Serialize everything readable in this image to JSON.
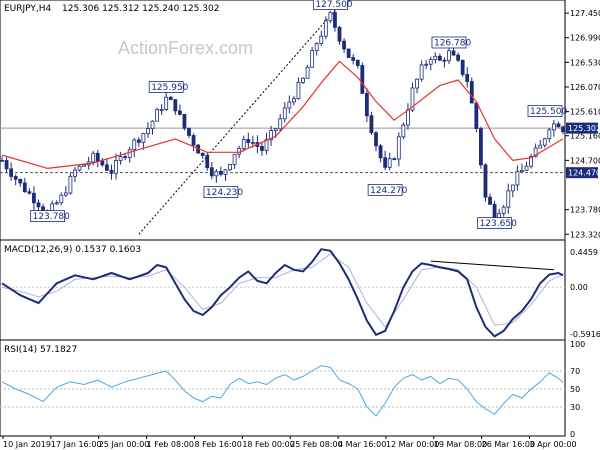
{
  "header": {
    "symbol": "EURJPY,H4",
    "ohlc": "125.306 125.312 125.240 125.302",
    "watermark": "ActionForex.com"
  },
  "colors": {
    "candle": "#1d2c7a",
    "ma": "#e8322d",
    "macd": "#1d2c7a",
    "signal": "#b0b0d8",
    "rsi": "#4aa8e8",
    "axis": "#000000",
    "badge": "#1d2c7a"
  },
  "chart_data": [
    {
      "type": "candlestick",
      "title": "",
      "ylim": [
        123.25,
        127.62
      ],
      "yticks": [
        "127.450",
        "126.990",
        "126.530",
        "126.070",
        "125.610",
        "125.160",
        "124.700",
        "124.470",
        "123.780",
        "123.320"
      ],
      "xticks": [
        "10 Jan 2019",
        "17 Jan 16:00",
        "25 Jan 00:00",
        "1 Feb 08:00",
        "8 Feb 16:00",
        "18 Feb 00:00",
        "25 Feb 08:00",
        "4 Mar 16:00",
        "12 Mar 00:00",
        "19 Mar 08:00",
        "26 Mar 16:00",
        "3 Apr 00:00"
      ],
      "close_path": [
        [
          0,
          124.7
        ],
        [
          4,
          124.25
        ],
        [
          8,
          123.9
        ],
        [
          10,
          123.7
        ],
        [
          13,
          124.0
        ],
        [
          16,
          124.5
        ],
        [
          20,
          124.75
        ],
        [
          24,
          124.5
        ],
        [
          28,
          124.95
        ],
        [
          32,
          125.3
        ],
        [
          36,
          125.85
        ],
        [
          38,
          125.7
        ],
        [
          40,
          125.3
        ],
        [
          43,
          124.9
        ],
        [
          46,
          124.5
        ],
        [
          48,
          124.4
        ],
        [
          51,
          124.85
        ],
        [
          54,
          125.1
        ],
        [
          57,
          124.9
        ],
        [
          60,
          125.3
        ],
        [
          63,
          125.8
        ],
        [
          66,
          126.2
        ],
        [
          69,
          126.9
        ],
        [
          72,
          127.4
        ],
        [
          74,
          127.0
        ],
        [
          76,
          126.65
        ],
        [
          78,
          126.4
        ],
        [
          80,
          125.6
        ],
        [
          82,
          125.0
        ],
        [
          84,
          124.5
        ],
        [
          86,
          124.8
        ],
        [
          88,
          125.4
        ],
        [
          90,
          126.0
        ],
        [
          92,
          126.4
        ],
        [
          94,
          126.65
        ],
        [
          96,
          126.55
        ],
        [
          98,
          126.7
        ],
        [
          100,
          126.5
        ],
        [
          102,
          126.2
        ],
        [
          104,
          125.3
        ],
        [
          106,
          124.0
        ],
        [
          108,
          123.7
        ],
        [
          110,
          123.9
        ],
        [
          112,
          124.3
        ],
        [
          114,
          124.5
        ],
        [
          116,
          124.75
        ],
        [
          118,
          124.95
        ],
        [
          120,
          125.35
        ],
        [
          122,
          125.4
        ],
        [
          123,
          125.3
        ]
      ],
      "ma_path": [
        [
          0,
          124.8
        ],
        [
          10,
          124.55
        ],
        [
          20,
          124.65
        ],
        [
          30,
          124.9
        ],
        [
          38,
          125.1
        ],
        [
          45,
          124.85
        ],
        [
          52,
          124.85
        ],
        [
          60,
          125.15
        ],
        [
          66,
          125.7
        ],
        [
          70,
          126.15
        ],
        [
          74,
          126.55
        ],
        [
          78,
          126.25
        ],
        [
          82,
          125.8
        ],
        [
          86,
          125.45
        ],
        [
          90,
          125.7
        ],
        [
          96,
          126.1
        ],
        [
          100,
          126.2
        ],
        [
          104,
          125.8
        ],
        [
          108,
          125.1
        ],
        [
          112,
          124.7
        ],
        [
          116,
          124.75
        ],
        [
          120,
          124.95
        ],
        [
          123,
          125.1
        ]
      ],
      "support_line": 124.47,
      "current_line": 125.302,
      "trendline": [
        [
          30,
          123.32
        ],
        [
          73,
          127.5
        ]
      ],
      "annotations": [
        {
          "text": "127.500",
          "x": 72,
          "y": 127.5
        },
        {
          "text": "126.780",
          "x": 98,
          "y": 126.78
        },
        {
          "text": "125.950",
          "x": 36,
          "y": 125.95
        },
        {
          "text": "125.500",
          "x": 120,
          "y": 125.5
        },
        {
          "text": "124.270",
          "x": 84,
          "y": 124.27
        },
        {
          "text": "124.230",
          "x": 48,
          "y": 124.23
        },
        {
          "text": "123.780",
          "x": 10,
          "y": 123.78
        },
        {
          "text": "123.650",
          "x": 108,
          "y": 123.65
        }
      ],
      "price_badges": [
        "125.302",
        "124.470"
      ]
    },
    {
      "type": "line",
      "name": "MACD(12,26,9) 0.1537 0.1603",
      "ylim": [
        -0.64,
        0.52
      ],
      "yticks": [
        "0.4459",
        "0.00",
        "-0.5916"
      ],
      "macd": [
        [
          0,
          0.05
        ],
        [
          4,
          -0.1
        ],
        [
          8,
          -0.2
        ],
        [
          12,
          0.05
        ],
        [
          16,
          0.15
        ],
        [
          20,
          0.1
        ],
        [
          24,
          0.18
        ],
        [
          28,
          0.1
        ],
        [
          32,
          0.18
        ],
        [
          34,
          0.28
        ],
        [
          36,
          0.25
        ],
        [
          38,
          0.05
        ],
        [
          40,
          -0.15
        ],
        [
          42,
          -0.3
        ],
        [
          44,
          -0.35
        ],
        [
          46,
          -0.25
        ],
        [
          48,
          -0.1
        ],
        [
          50,
          0.0
        ],
        [
          52,
          0.12
        ],
        [
          54,
          0.2
        ],
        [
          56,
          0.08
        ],
        [
          58,
          0.05
        ],
        [
          60,
          0.18
        ],
        [
          62,
          0.28
        ],
        [
          64,
          0.22
        ],
        [
          66,
          0.2
        ],
        [
          68,
          0.32
        ],
        [
          70,
          0.48
        ],
        [
          72,
          0.46
        ],
        [
          74,
          0.3
        ],
        [
          76,
          0.1
        ],
        [
          78,
          -0.15
        ],
        [
          80,
          -0.42
        ],
        [
          82,
          -0.6
        ],
        [
          84,
          -0.55
        ],
        [
          86,
          -0.3
        ],
        [
          88,
          0.0
        ],
        [
          90,
          0.2
        ],
        [
          92,
          0.3
        ],
        [
          94,
          0.28
        ],
        [
          96,
          0.25
        ],
        [
          98,
          0.23
        ],
        [
          100,
          0.2
        ],
        [
          102,
          0.1
        ],
        [
          104,
          -0.25
        ],
        [
          106,
          -0.5
        ],
        [
          108,
          -0.62
        ],
        [
          110,
          -0.55
        ],
        [
          112,
          -0.4
        ],
        [
          114,
          -0.3
        ],
        [
          116,
          -0.15
        ],
        [
          118,
          0.05
        ],
        [
          120,
          0.16
        ],
        [
          122,
          0.18
        ],
        [
          123,
          0.15
        ]
      ],
      "signal": [
        [
          0,
          0.0
        ],
        [
          4,
          -0.05
        ],
        [
          8,
          -0.12
        ],
        [
          12,
          -0.05
        ],
        [
          16,
          0.1
        ],
        [
          20,
          0.12
        ],
        [
          24,
          0.14
        ],
        [
          28,
          0.12
        ],
        [
          32,
          0.14
        ],
        [
          36,
          0.22
        ],
        [
          40,
          0.0
        ],
        [
          44,
          -0.28
        ],
        [
          48,
          -0.2
        ],
        [
          52,
          0.05
        ],
        [
          56,
          0.12
        ],
        [
          60,
          0.12
        ],
        [
          64,
          0.22
        ],
        [
          68,
          0.25
        ],
        [
          72,
          0.42
        ],
        [
          76,
          0.25
        ],
        [
          80,
          -0.2
        ],
        [
          84,
          -0.5
        ],
        [
          88,
          -0.15
        ],
        [
          92,
          0.22
        ],
        [
          96,
          0.26
        ],
        [
          100,
          0.22
        ],
        [
          104,
          0.0
        ],
        [
          108,
          -0.48
        ],
        [
          112,
          -0.45
        ],
        [
          116,
          -0.22
        ],
        [
          120,
          0.08
        ],
        [
          123,
          0.16
        ]
      ],
      "trendline": [
        [
          94,
          0.33
        ],
        [
          121,
          0.22
        ]
      ]
    },
    {
      "type": "line",
      "name": "RSI(14) 57.1827",
      "ylim": [
        0,
        100
      ],
      "yticks": [
        "100",
        "70",
        "50",
        "30",
        "0"
      ],
      "rsi": [
        [
          0,
          58
        ],
        [
          3,
          50
        ],
        [
          6,
          44
        ],
        [
          9,
          36
        ],
        [
          12,
          52
        ],
        [
          15,
          58
        ],
        [
          18,
          55
        ],
        [
          21,
          60
        ],
        [
          24,
          52
        ],
        [
          27,
          58
        ],
        [
          30,
          62
        ],
        [
          33,
          66
        ],
        [
          36,
          70
        ],
        [
          38,
          60
        ],
        [
          40,
          48
        ],
        [
          42,
          40
        ],
        [
          44,
          36
        ],
        [
          46,
          42
        ],
        [
          48,
          40
        ],
        [
          50,
          55
        ],
        [
          52,
          62
        ],
        [
          54,
          56
        ],
        [
          56,
          58
        ],
        [
          58,
          55
        ],
        [
          60,
          62
        ],
        [
          62,
          66
        ],
        [
          64,
          60
        ],
        [
          66,
          64
        ],
        [
          68,
          70
        ],
        [
          70,
          76
        ],
        [
          72,
          74
        ],
        [
          74,
          60
        ],
        [
          76,
          56
        ],
        [
          78,
          50
        ],
        [
          80,
          30
        ],
        [
          82,
          20
        ],
        [
          84,
          34
        ],
        [
          86,
          52
        ],
        [
          88,
          62
        ],
        [
          90,
          66
        ],
        [
          92,
          60
        ],
        [
          94,
          64
        ],
        [
          96,
          56
        ],
        [
          98,
          62
        ],
        [
          100,
          60
        ],
        [
          102,
          50
        ],
        [
          104,
          36
        ],
        [
          106,
          28
        ],
        [
          108,
          22
        ],
        [
          110,
          34
        ],
        [
          112,
          44
        ],
        [
          114,
          40
        ],
        [
          116,
          50
        ],
        [
          118,
          58
        ],
        [
          120,
          68
        ],
        [
          122,
          62
        ],
        [
          123,
          57
        ]
      ]
    }
  ]
}
